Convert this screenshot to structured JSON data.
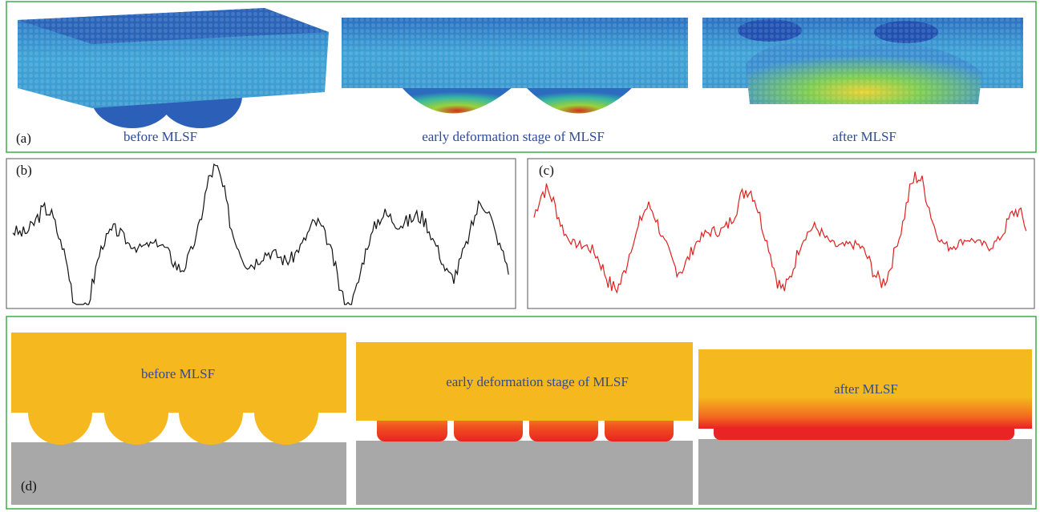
{
  "panel_a": {
    "label": "(a)",
    "captions": [
      "before MLSF",
      "early deformation stage of MLSF",
      "after MLSF"
    ]
  },
  "panel_b": {
    "label": "(b)"
  },
  "panel_c": {
    "label": "(c)"
  },
  "panel_d": {
    "label": "(d)",
    "captions": [
      "before MLSF",
      "early deformation stage of MLSF",
      "after MLSF"
    ]
  }
}
